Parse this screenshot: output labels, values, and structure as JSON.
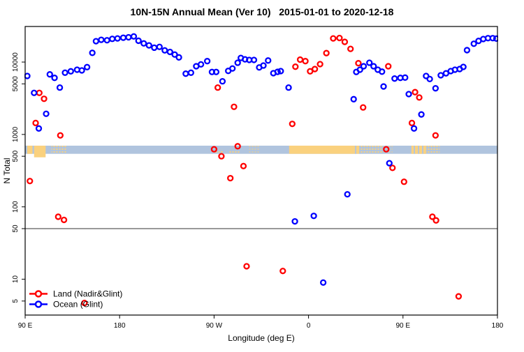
{
  "title": "10N-15N Annual Mean (Ver 10)   2015-01-01 to 2020-12-18",
  "x_axis": {
    "label": "Longitude (deg E)",
    "span_deg": 450,
    "ticks": [
      {
        "pos": 0,
        "label": "90 E"
      },
      {
        "pos": 90,
        "label": "180"
      },
      {
        "pos": 180,
        "label": "90 W"
      },
      {
        "pos": 270,
        "label": "0"
      },
      {
        "pos": 360,
        "label": "90 E"
      },
      {
        "pos": 450,
        "label": "180"
      }
    ]
  },
  "y_axis": {
    "label": "N Total",
    "scale": "log",
    "min": 3.2,
    "max": 31000,
    "ticks": [
      5,
      10,
      50,
      100,
      500,
      1000,
      5000,
      10000
    ]
  },
  "reference_line": {
    "value": 50
  },
  "colors": {
    "land": "#FF0000",
    "ocean": "#0000FF",
    "band_ocean": "#B0C4DE",
    "band_land": "#FAD17E",
    "ref_line": "#333333",
    "axis": "#000000"
  },
  "land_ocean_band": {
    "top_value": 700,
    "bottom_value": 540,
    "land_segments": [
      {
        "from": 2,
        "to": 7,
        "style": "solid"
      },
      {
        "from": 8.5,
        "to": 19.5,
        "style": "solid_tall"
      },
      {
        "from": 25,
        "to": 31,
        "style": "speckle"
      },
      {
        "from": 32.5,
        "to": 40,
        "style": "speckle"
      },
      {
        "from": 181,
        "to": 189,
        "style": "speckle_low"
      },
      {
        "from": 194,
        "to": 205,
        "style": "speckle_low"
      },
      {
        "from": 213,
        "to": 224,
        "style": "speckle_faint"
      },
      {
        "from": 251.5,
        "to": 313,
        "style": "solid"
      },
      {
        "from": 313,
        "to": 319.5,
        "style": "mixed"
      },
      {
        "from": 319.5,
        "to": 341.5,
        "style": "speckle"
      },
      {
        "from": 345,
        "to": 350,
        "style": "speckle_faint"
      },
      {
        "from": 368,
        "to": 382,
        "style": "mixed"
      },
      {
        "from": 382,
        "to": 395,
        "style": "speckle"
      }
    ]
  },
  "legend": [
    {
      "label": "Land (Nadir&Glint)",
      "color": "#FF0000"
    },
    {
      "label": "Ocean (Glint)",
      "color": "#0000FF"
    }
  ],
  "chart_data": {
    "type": "scatter",
    "x_unit": "deg east along axis starting at 90E (0-450)",
    "y_unit": "N Total (log scale)",
    "series": [
      {
        "name": "Land (Nadir&Glint)",
        "color": "#FF0000",
        "points": [
          [
            4.5,
            227
          ],
          [
            10,
            1440
          ],
          [
            13.5,
            3750
          ],
          [
            18,
            3110
          ],
          [
            31.5,
            73
          ],
          [
            33.5,
            970
          ],
          [
            37,
            66
          ],
          [
            56.5,
            4.7
          ],
          [
            180,
            624
          ],
          [
            183.5,
            4440
          ],
          [
            187,
            500
          ],
          [
            195.5,
            249
          ],
          [
            199,
            2410
          ],
          [
            202.5,
            687
          ],
          [
            208,
            366
          ],
          [
            211,
            15.1
          ],
          [
            245.5,
            13
          ],
          [
            254.5,
            1400
          ],
          [
            257.5,
            8630
          ],
          [
            262,
            10800
          ],
          [
            267,
            10300
          ],
          [
            271.5,
            7450
          ],
          [
            276,
            8010
          ],
          [
            281,
            9360
          ],
          [
            287,
            13300
          ],
          [
            293.5,
            21200
          ],
          [
            299.5,
            21500
          ],
          [
            304.5,
            19000
          ],
          [
            310,
            15200
          ],
          [
            317.5,
            9640
          ],
          [
            322,
            2360
          ],
          [
            344,
            624
          ],
          [
            346,
            8750
          ],
          [
            350,
            345
          ],
          [
            361,
            222
          ],
          [
            368.5,
            1440
          ],
          [
            371.5,
            3840
          ],
          [
            375.5,
            3240
          ],
          [
            388,
            73
          ],
          [
            391,
            970
          ],
          [
            391.5,
            65
          ],
          [
            413,
            5.8
          ]
        ]
      },
      {
        "name": "Ocean (Glint)",
        "color": "#0000FF",
        "points": [
          [
            2,
            6420
          ],
          [
            8.5,
            3750
          ],
          [
            13,
            1210
          ],
          [
            20,
            1930
          ],
          [
            23.5,
            6760
          ],
          [
            28,
            6050
          ],
          [
            33,
            4440
          ],
          [
            38,
            7130
          ],
          [
            43.5,
            7450
          ],
          [
            49.5,
            7840
          ],
          [
            54,
            7670
          ],
          [
            59,
            8510
          ],
          [
            64,
            13400
          ],
          [
            67.5,
            19400
          ],
          [
            72.5,
            20300
          ],
          [
            78,
            20000
          ],
          [
            83,
            20900
          ],
          [
            88,
            21200
          ],
          [
            93.5,
            21700
          ],
          [
            98.5,
            22000
          ],
          [
            103.5,
            22600
          ],
          [
            108,
            19700
          ],
          [
            113,
            18100
          ],
          [
            118,
            17000
          ],
          [
            123,
            15800
          ],
          [
            128,
            16200
          ],
          [
            133,
            14500
          ],
          [
            138,
            13800
          ],
          [
            142.5,
            12700
          ],
          [
            146.5,
            11600
          ],
          [
            153,
            6910
          ],
          [
            158,
            7130
          ],
          [
            163,
            8750
          ],
          [
            167.5,
            9290
          ],
          [
            173.5,
            10300
          ],
          [
            178,
            7300
          ],
          [
            182,
            7300
          ],
          [
            188,
            5420
          ],
          [
            193.5,
            7550
          ],
          [
            197.5,
            8150
          ],
          [
            202.5,
            9780
          ],
          [
            205.5,
            11400
          ],
          [
            209.5,
            10900
          ],
          [
            213.5,
            10700
          ],
          [
            218,
            10700
          ],
          [
            223,
            8430
          ],
          [
            227,
            8950
          ],
          [
            231.5,
            10500
          ],
          [
            236.5,
            7020
          ],
          [
            240.5,
            7330
          ],
          [
            243.5,
            7500
          ],
          [
            251,
            4440
          ],
          [
            257,
            63
          ],
          [
            275,
            75
          ],
          [
            284,
            9
          ],
          [
            307,
            149
          ],
          [
            313,
            3070
          ],
          [
            315.5,
            7300
          ],
          [
            319,
            7840
          ],
          [
            322.5,
            8750
          ],
          [
            328,
            9780
          ],
          [
            332,
            8750
          ],
          [
            336,
            7840
          ],
          [
            340,
            7370
          ],
          [
            341.5,
            4600
          ],
          [
            347,
            401
          ],
          [
            352,
            5920
          ],
          [
            357.5,
            6050
          ],
          [
            362,
            6100
          ],
          [
            365.5,
            3610
          ],
          [
            370.5,
            1210
          ],
          [
            377.5,
            1890
          ],
          [
            382,
            6420
          ],
          [
            385.5,
            5830
          ],
          [
            391,
            4340
          ],
          [
            396,
            6570
          ],
          [
            401,
            6990
          ],
          [
            405.5,
            7500
          ],
          [
            409.5,
            7840
          ],
          [
            414,
            8010
          ],
          [
            417.5,
            8570
          ],
          [
            421,
            14600
          ],
          [
            427.5,
            17900
          ],
          [
            432,
            19600
          ],
          [
            436.5,
            20800
          ],
          [
            441,
            21400
          ],
          [
            445.5,
            21400
          ],
          [
            449,
            21100
          ]
        ]
      }
    ]
  }
}
